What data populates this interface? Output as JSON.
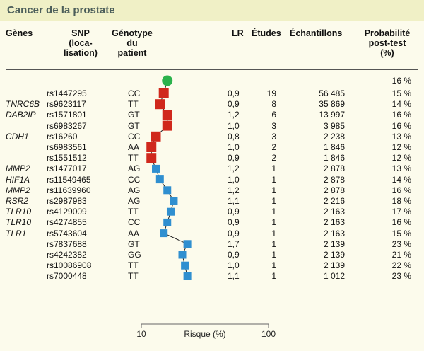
{
  "title": "Cancer de la prostate",
  "headers": {
    "genes": "Gènes",
    "snp": [
      "SNP",
      "(loca-",
      "lisation)"
    ],
    "genotype": [
      "Génotype",
      "du",
      "patient"
    ],
    "lr": "LR",
    "etudes": "Études",
    "echantillons": "Échantillons",
    "prob": [
      "Probabilité",
      "post-test",
      "(%)"
    ]
  },
  "baseline": {
    "prob": "16 %",
    "value": 16
  },
  "rows": [
    {
      "gene": "",
      "snp": "rs1447295",
      "geno": "CC",
      "lr": "0,9",
      "etudes": "19",
      "ech": "56 485",
      "prob": "15 %",
      "value": 15
    },
    {
      "gene": "TNRC6B",
      "snp": "rs9623117",
      "geno": "TT",
      "lr": "0,9",
      "etudes": "8",
      "ech": "35 869",
      "prob": "14 %",
      "value": 14
    },
    {
      "gene": "DAB2IP",
      "snp": "rs1571801",
      "geno": "GT",
      "lr": "1,2",
      "etudes": "6",
      "ech": "13 997",
      "prob": "16 %",
      "value": 16
    },
    {
      "gene": "",
      "snp": "rs6983267",
      "geno": "GT",
      "lr": "1,0",
      "etudes": "3",
      "ech": "3 985",
      "prob": "16 %",
      "value": 16
    },
    {
      "gene": "CDH1",
      "snp": "rs16260",
      "geno": "CC",
      "lr": "0,8",
      "etudes": "3",
      "ech": "2 238",
      "prob": "13 %",
      "value": 13
    },
    {
      "gene": "",
      "snp": "rs6983561",
      "geno": "AA",
      "lr": "1,0",
      "etudes": "2",
      "ech": "1 846",
      "prob": "12 %",
      "value": 12
    },
    {
      "gene": "",
      "snp": "rs1551512",
      "geno": "TT",
      "lr": "0,9",
      "etudes": "2",
      "ech": "1 846",
      "prob": "12 %",
      "value": 12
    },
    {
      "gene": "MMP2",
      "snp": "rs1477017",
      "geno": "AG",
      "lr": "1,2",
      "etudes": "1",
      "ech": "2 878",
      "prob": "13 %",
      "value": 13
    },
    {
      "gene": "HIF1A",
      "snp": "rs11549465",
      "geno": "CC",
      "lr": "1,0",
      "etudes": "1",
      "ech": "2 878",
      "prob": "14 %",
      "value": 14
    },
    {
      "gene": "MMP2",
      "snp": "rs11639960",
      "geno": "AG",
      "lr": "1,2",
      "etudes": "1",
      "ech": "2 878",
      "prob": "16 %",
      "value": 16
    },
    {
      "gene": "RSR2",
      "snp": "rs2987983",
      "geno": "AG",
      "lr": "1,1",
      "etudes": "1",
      "ech": "2 216",
      "prob": "18 %",
      "value": 18
    },
    {
      "gene": "TLR10",
      "snp": "rs4129009",
      "geno": "TT",
      "lr": "0,9",
      "etudes": "1",
      "ech": "2 163",
      "prob": "17 %",
      "value": 17
    },
    {
      "gene": "TLR10",
      "snp": "rs4274855",
      "geno": "CC",
      "lr": "0,9",
      "etudes": "1",
      "ech": "2 163",
      "prob": "16 %",
      "value": 16
    },
    {
      "gene": "TLR1",
      "snp": "rs5743604",
      "geno": "AA",
      "lr": "0,9",
      "etudes": "1",
      "ech": "2 163",
      "prob": "15 %",
      "value": 15
    },
    {
      "gene": "",
      "snp": "rs7837688",
      "geno": "GT",
      "lr": "1,7",
      "etudes": "1",
      "ech": "2 139",
      "prob": "23 %",
      "value": 23
    },
    {
      "gene": "",
      "snp": "rs4242382",
      "geno": "GG",
      "lr": "0,9",
      "etudes": "1",
      "ech": "2 139",
      "prob": "21 %",
      "value": 21
    },
    {
      "gene": "",
      "snp": "rs10086908",
      "geno": "TT",
      "lr": "1,0",
      "etudes": "1",
      "ech": "2 139",
      "prob": "22 %",
      "value": 22
    },
    {
      "gene": "",
      "snp": "rs7000448",
      "geno": "TT",
      "lr": "1,1",
      "etudes": "1",
      "ech": "1 012",
      "prob": "23 %",
      "value": 23
    }
  ],
  "chart_data": {
    "type": "line",
    "xlabel": "Risque (%)",
    "xscale": "log",
    "xlim": [
      10,
      100
    ],
    "tick_labels": [
      "10",
      "100"
    ],
    "baseline_value": 16,
    "values": [
      15,
      14,
      16,
      16,
      13,
      12,
      12,
      13,
      14,
      16,
      18,
      17,
      16,
      15,
      23,
      21,
      22,
      23
    ],
    "colors": {
      "baseline": "#2bb24c",
      "rows_1_7": "#d0281c",
      "rows_8_18": "#2f8fd0"
    }
  }
}
